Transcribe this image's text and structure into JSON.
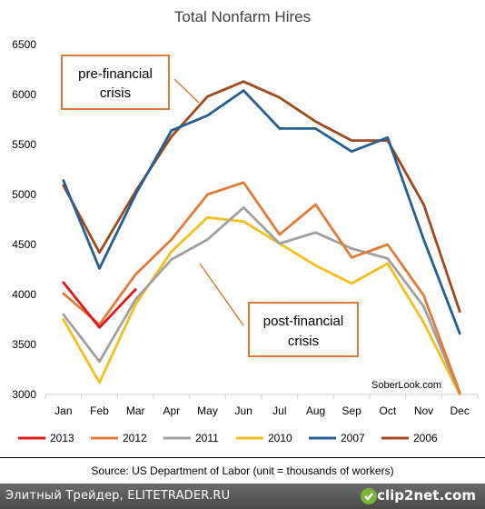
{
  "chart_data": {
    "type": "line",
    "title": "Total Nonfarm Hires",
    "categories": [
      "Jan",
      "Feb",
      "Mar",
      "Apr",
      "May",
      "Jun",
      "Jul",
      "Aug",
      "Sep",
      "Oct",
      "Nov",
      "Dec"
    ],
    "ylim": [
      3000,
      6500
    ],
    "yticks": [
      3000,
      3500,
      4000,
      4500,
      5000,
      5500,
      6000,
      6500
    ],
    "grid": false,
    "legend_position": "bottom",
    "series": [
      {
        "name": "2013",
        "color": "#e0191b",
        "values": [
          4120,
          3670,
          4050,
          null,
          null,
          null,
          null,
          null,
          null,
          null,
          null,
          null
        ]
      },
      {
        "name": "2012",
        "color": "#e07b39",
        "values": [
          4010,
          3700,
          4200,
          4550,
          5000,
          5120,
          4600,
          4900,
          4370,
          4500,
          3990,
          3020
        ]
      },
      {
        "name": "2011",
        "color": "#a0a0a0",
        "values": [
          3800,
          3330,
          3950,
          4350,
          4550,
          4870,
          4510,
          4620,
          4460,
          4360,
          3880,
          3010
        ]
      },
      {
        "name": "2010",
        "color": "#f2c01e",
        "values": [
          3750,
          3120,
          3900,
          4430,
          4770,
          4730,
          4510,
          4290,
          4110,
          4310,
          3720,
          3000
        ]
      },
      {
        "name": "2007",
        "color": "#255e91",
        "values": [
          5140,
          4260,
          5000,
          5640,
          5790,
          6040,
          5660,
          5660,
          5430,
          5570,
          4550,
          3610
        ]
      },
      {
        "name": "2006",
        "color": "#9e4a1e",
        "values": [
          5090,
          4420,
          5030,
          5580,
          5980,
          6130,
          5970,
          5730,
          5540,
          5540,
          4900,
          3830
        ]
      }
    ],
    "annotations": [
      {
        "text_lines": [
          "pre-financial",
          "crisis"
        ],
        "box_color": "#d97c3a"
      },
      {
        "text_lines": [
          "post-financial",
          "crisis"
        ],
        "box_color": "#d97c3a"
      },
      {
        "text": "SoberLook.com"
      }
    ]
  },
  "source": "Source: US Department of Labor (unit = thousands of workers)",
  "footer": {
    "left_text": "Элитный Трейдер, ELITETRADER.RU",
    "right_text": "clip2net.com"
  }
}
